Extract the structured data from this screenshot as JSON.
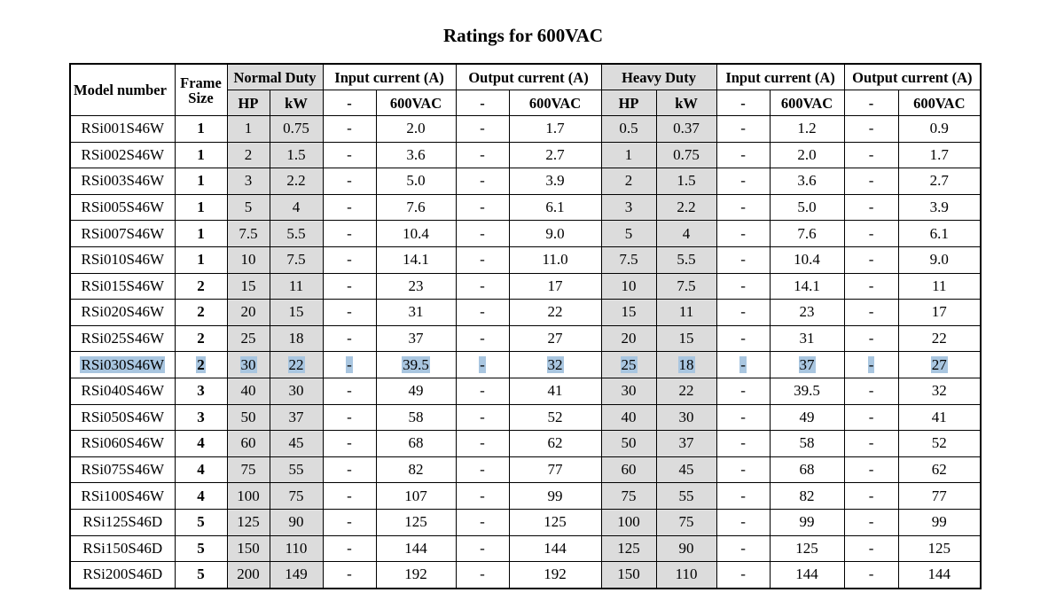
{
  "title": "Ratings for 600VAC",
  "headers": {
    "model_number": "Model number",
    "frame_size": "Frame Size",
    "normal_duty": "Normal Duty",
    "input_current": "Input current (A)",
    "output_current": "Output current (A)",
    "heavy_duty": "Heavy Duty",
    "input_current_2": "Input current (A)",
    "output_current_2": "Output current (A)",
    "hp": "HP",
    "kw": "kW",
    "dash": "-",
    "vac": "600VAC",
    "hp_2": "HP",
    "kw_2": "kW",
    "dash_2": "-",
    "vac_2": "600VAC",
    "dash_3": "-",
    "vac_3": "600VAC",
    "dash_4": "-",
    "vac_4": "600VAC"
  },
  "colors": {
    "shade": "#dcdcdc",
    "selection": "#a9c6e0"
  },
  "highlighted_row_index": 9,
  "rows": [
    [
      "RSi001S46W",
      "1",
      "1",
      "0.75",
      "-",
      "2.0",
      "-",
      "1.7",
      "0.5",
      "0.37",
      "-",
      "1.2",
      "-",
      "0.9"
    ],
    [
      "RSi002S46W",
      "1",
      "2",
      "1.5",
      "-",
      "3.6",
      "-",
      "2.7",
      "1",
      "0.75",
      "-",
      "2.0",
      "-",
      "1.7"
    ],
    [
      "RSi003S46W",
      "1",
      "3",
      "2.2",
      "-",
      "5.0",
      "-",
      "3.9",
      "2",
      "1.5",
      "-",
      "3.6",
      "-",
      "2.7"
    ],
    [
      "RSi005S46W",
      "1",
      "5",
      "4",
      "-",
      "7.6",
      "-",
      "6.1",
      "3",
      "2.2",
      "-",
      "5.0",
      "-",
      "3.9"
    ],
    [
      "RSi007S46W",
      "1",
      "7.5",
      "5.5",
      "-",
      "10.4",
      "-",
      "9.0",
      "5",
      "4",
      "-",
      "7.6",
      "-",
      "6.1"
    ],
    [
      "RSi010S46W",
      "1",
      "10",
      "7.5",
      "-",
      "14.1",
      "-",
      "11.0",
      "7.5",
      "5.5",
      "-",
      "10.4",
      "-",
      "9.0"
    ],
    [
      "RSi015S46W",
      "2",
      "15",
      "11",
      "-",
      "23",
      "-",
      "17",
      "10",
      "7.5",
      "-",
      "14.1",
      "-",
      "11"
    ],
    [
      "RSi020S46W",
      "2",
      "20",
      "15",
      "-",
      "31",
      "-",
      "22",
      "15",
      "11",
      "-",
      "23",
      "-",
      "17"
    ],
    [
      "RSi025S46W",
      "2",
      "25",
      "18",
      "-",
      "37",
      "-",
      "27",
      "20",
      "15",
      "-",
      "31",
      "-",
      "22"
    ],
    [
      "RSi030S46W",
      "2",
      "30",
      "22",
      "-",
      "39.5",
      "-",
      "32",
      "25",
      "18",
      "-",
      "37",
      "-",
      "27"
    ],
    [
      "RSi040S46W",
      "3",
      "40",
      "30",
      "-",
      "49",
      "-",
      "41",
      "30",
      "22",
      "-",
      "39.5",
      "-",
      "32"
    ],
    [
      "RSi050S46W",
      "3",
      "50",
      "37",
      "-",
      "58",
      "-",
      "52",
      "40",
      "30",
      "-",
      "49",
      "-",
      "41"
    ],
    [
      "RSi060S46W",
      "4",
      "60",
      "45",
      "-",
      "68",
      "-",
      "62",
      "50",
      "37",
      "-",
      "58",
      "-",
      "52"
    ],
    [
      "RSi075S46W",
      "4",
      "75",
      "55",
      "-",
      "82",
      "-",
      "77",
      "60",
      "45",
      "-",
      "68",
      "-",
      "62"
    ],
    [
      "RSi100S46W",
      "4",
      "100",
      "75",
      "-",
      "107",
      "-",
      "99",
      "75",
      "55",
      "-",
      "82",
      "-",
      "77"
    ],
    [
      "RSi125S46D",
      "5",
      "125",
      "90",
      "-",
      "125",
      "-",
      "125",
      "100",
      "75",
      "-",
      "99",
      "-",
      "99"
    ],
    [
      "RSi150S46D",
      "5",
      "150",
      "110",
      "-",
      "144",
      "-",
      "144",
      "125",
      "90",
      "-",
      "125",
      "-",
      "125"
    ],
    [
      "RSi200S46D",
      "5",
      "200",
      "149",
      "-",
      "192",
      "-",
      "192",
      "150",
      "110",
      "-",
      "144",
      "-",
      "144"
    ]
  ]
}
